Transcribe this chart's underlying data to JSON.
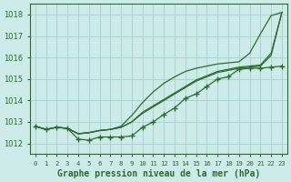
{
  "title": "Graphe pression niveau de la mer (hPa)",
  "background_color": "#cceae7",
  "grid_color": "#aad4d0",
  "line_color": "#2d6b2d",
  "ylim": [
    1011.5,
    1018.5
  ],
  "yticks": [
    1012,
    1013,
    1014,
    1015,
    1016,
    1017,
    1018
  ],
  "x_labels": [
    "0",
    "1",
    "2",
    "3",
    "4",
    "5",
    "6",
    "7",
    "8",
    "9",
    "10",
    "11",
    "12",
    "13",
    "14",
    "15",
    "16",
    "17",
    "18",
    "19",
    "20",
    "21",
    "22",
    "23"
  ],
  "series_marked": [
    1012.8,
    1012.65,
    1012.75,
    1012.7,
    1012.2,
    1012.15,
    1012.3,
    1012.3,
    1012.3,
    1012.35,
    1012.75,
    1013.0,
    1013.35,
    1013.65,
    1014.1,
    1014.3,
    1014.65,
    1015.0,
    1015.1,
    1015.45,
    1015.5,
    1015.5,
    1015.55,
    1015.6
  ],
  "series_line1": [
    1012.8,
    1012.65,
    1012.75,
    1012.7,
    1012.45,
    1012.5,
    1012.6,
    1012.65,
    1012.75,
    1013.0,
    1013.4,
    1013.7,
    1014.0,
    1014.3,
    1014.6,
    1014.9,
    1015.1,
    1015.3,
    1015.4,
    1015.5,
    1015.55,
    1015.6,
    1016.1,
    1018.1
  ],
  "series_line2": [
    1012.8,
    1012.65,
    1012.75,
    1012.7,
    1012.45,
    1012.5,
    1012.6,
    1012.65,
    1012.75,
    1013.0,
    1013.45,
    1013.75,
    1014.05,
    1014.35,
    1014.65,
    1014.95,
    1015.15,
    1015.35,
    1015.45,
    1015.55,
    1015.6,
    1015.65,
    1016.2,
    1018.1
  ],
  "series_high": [
    1012.8,
    1012.65,
    1012.75,
    1012.7,
    1012.45,
    1012.5,
    1012.6,
    1012.65,
    1012.8,
    1013.3,
    1013.9,
    1014.4,
    1014.8,
    1015.1,
    1015.35,
    1015.5,
    1015.6,
    1015.7,
    1015.75,
    1015.8,
    1016.2,
    1017.1,
    1017.95,
    1018.1
  ]
}
